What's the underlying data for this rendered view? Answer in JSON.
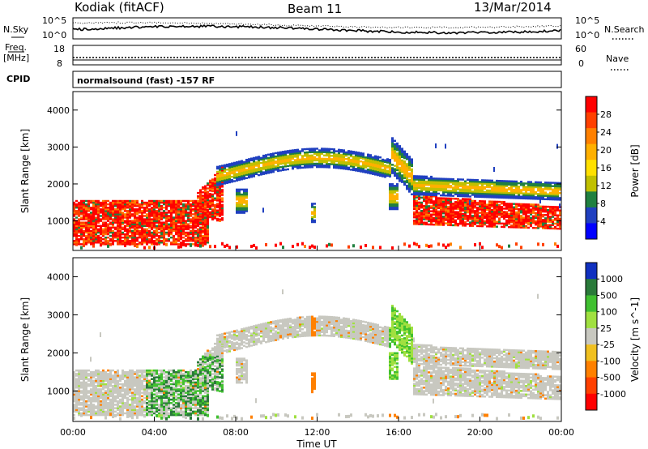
{
  "header": {
    "radar": "Kodiak (fitACF)",
    "beam": "Beam 11",
    "date": "13/Mar/2014"
  },
  "noise_panel": {
    "left_label": "N.Sky",
    "right_label": "N.Search",
    "y_ticks": [
      "10^5",
      "10^0"
    ]
  },
  "freq_panel": {
    "left_label_top": "Freq.",
    "left_label_bottom": "[MHz]",
    "left_ticks": [
      "18",
      "8"
    ],
    "right_label": "Nave",
    "right_ticks": [
      "60",
      "0"
    ]
  },
  "cpid": {
    "label": "CPID",
    "value": "normalsound (fast) -157 RF"
  },
  "chart_data": [
    {
      "type": "heatmap",
      "parameter": "power",
      "ylabel": "Slant Range [km]",
      "xlabel": "",
      "ylim": [
        200,
        4500
      ],
      "yticks": [
        1000,
        2000,
        3000,
        4000
      ],
      "colorbar": {
        "label": "Power [dB]",
        "ticks": [
          "28",
          "24",
          "20",
          "16",
          "12",
          "8",
          "4"
        ],
        "colors": [
          "#ff0000",
          "#ff4000",
          "#ff8000",
          "#ffb000",
          "#ffe000",
          "#c0c000",
          "#208040",
          "#2040c0",
          "#0000ff"
        ]
      }
    },
    {
      "type": "heatmap",
      "parameter": "velocity",
      "ylabel": "Slant Range [km]",
      "xlabel": "Time UT",
      "xticks": [
        "00:00",
        "04:00",
        "08:00",
        "12:00",
        "16:00",
        "20:00",
        "00:00"
      ],
      "ylim": [
        200,
        4500
      ],
      "yticks": [
        1000,
        2000,
        3000,
        4000
      ],
      "colorbar": {
        "label": "Velocity [m s^-1]",
        "ticks": [
          "1000",
          "500",
          "100",
          "25",
          "-25",
          "-100",
          "-500",
          "-1000"
        ],
        "colors": [
          "#1030c0",
          "#2a7a3a",
          "#40c030",
          "#a0e040",
          "#c8c8c0",
          "#f0c020",
          "#ff8000",
          "#ff4000",
          "#ff0000"
        ]
      }
    }
  ]
}
